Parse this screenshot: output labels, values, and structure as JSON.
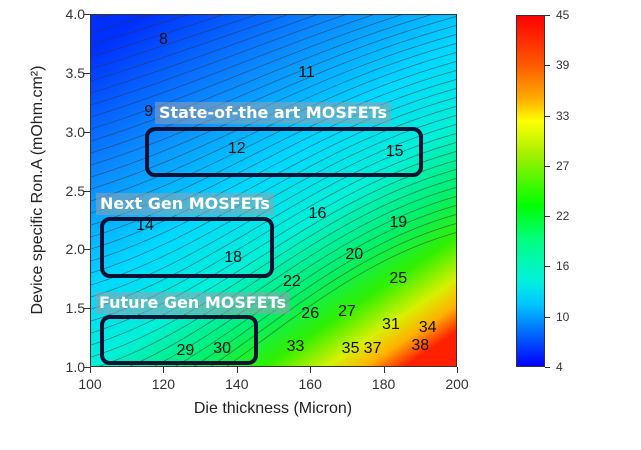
{
  "chart_data": {
    "type": "heatmap",
    "subtype": "contour",
    "title": "",
    "xlabel": "Die thickness (Micron)",
    "ylabel": "Device specific Ron.A (mOhm.cm²)",
    "xlim": [
      100,
      200
    ],
    "ylim": [
      1.0,
      4.0
    ],
    "x_ticks": [
      "100",
      "120",
      "140",
      "160",
      "180",
      "200"
    ],
    "y_ticks": [
      "1.0",
      "1.5",
      "2.0",
      "2.5",
      "3.0",
      "3.5",
      "4.0"
    ],
    "colorbar": {
      "range": [
        4,
        45
      ],
      "ticks": [
        "4",
        "10",
        "16",
        "22",
        "27",
        "33",
        "39",
        "45"
      ],
      "colormap": "rainbow (blue-cyan-green-yellow-red)"
    },
    "contour_labels": [
      {
        "value": "8",
        "x": 120,
        "y": 3.78
      },
      {
        "value": "11",
        "x": 159,
        "y": 3.5
      },
      {
        "value": "9",
        "x": 116,
        "y": 3.17
      },
      {
        "value": "12",
        "x": 140,
        "y": 2.85
      },
      {
        "value": "15",
        "x": 183,
        "y": 2.83
      },
      {
        "value": "16",
        "x": 162,
        "y": 2.3
      },
      {
        "value": "14",
        "x": 115,
        "y": 2.2
      },
      {
        "value": "19",
        "x": 184,
        "y": 2.22
      },
      {
        "value": "18",
        "x": 139,
        "y": 1.93
      },
      {
        "value": "20",
        "x": 172,
        "y": 1.95
      },
      {
        "value": "22",
        "x": 155,
        "y": 1.72
      },
      {
        "value": "25",
        "x": 184,
        "y": 1.75
      },
      {
        "value": "26",
        "x": 160,
        "y": 1.45
      },
      {
        "value": "27",
        "x": 170,
        "y": 1.47
      },
      {
        "value": "31",
        "x": 182,
        "y": 1.36
      },
      {
        "value": "34",
        "x": 192,
        "y": 1.33
      },
      {
        "value": "29",
        "x": 126,
        "y": 1.14
      },
      {
        "value": "30",
        "x": 136,
        "y": 1.15
      },
      {
        "value": "33",
        "x": 156,
        "y": 1.17
      },
      {
        "value": "35",
        "x": 171,
        "y": 1.15
      },
      {
        "value": "37",
        "x": 177,
        "y": 1.15
      },
      {
        "value": "38",
        "x": 190,
        "y": 1.18
      }
    ],
    "annotations": [
      {
        "label": "State-of-the art MOSFETs",
        "x_range": [
          116,
          190
        ],
        "y_range": [
          2.65,
          3.0
        ]
      },
      {
        "label": "Next Gen MOSFETs",
        "x_range": [
          103,
          149
        ],
        "y_range": [
          1.77,
          2.25
        ]
      },
      {
        "label": "Future Gen MOSFETs",
        "x_range": [
          103,
          146
        ],
        "y_range": [
          1.03,
          1.42
        ]
      }
    ],
    "grid": false,
    "legend": "colorbar right"
  }
}
